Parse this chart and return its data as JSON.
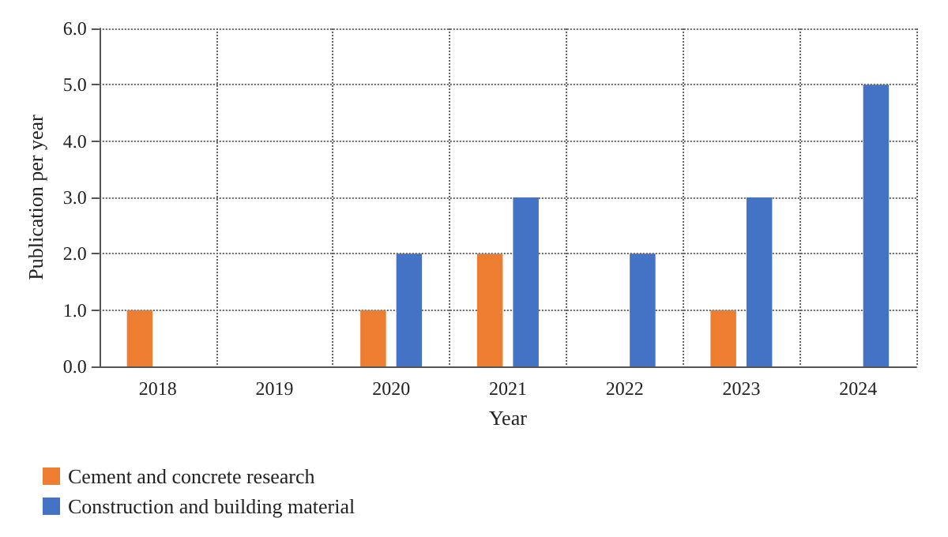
{
  "chart_data": {
    "type": "bar",
    "xlabel": "Year",
    "ylabel": "Publication per year",
    "categories": [
      "2018",
      "2019",
      "2020",
      "2021",
      "2022",
      "2023",
      "2024"
    ],
    "series": [
      {
        "name": "Cement and concrete research",
        "color": "#ed7d31",
        "values": [
          1,
          null,
          1,
          2,
          null,
          1,
          null
        ]
      },
      {
        "name": "Construction and building material",
        "color": "#4472c4",
        "values": [
          null,
          null,
          2,
          3,
          2,
          3,
          5
        ]
      }
    ],
    "ylim": [
      0,
      6
    ],
    "yticks": [
      {
        "value": 0,
        "label": "0.0"
      },
      {
        "value": 1,
        "label": "1.0"
      },
      {
        "value": 2,
        "label": "2.0"
      },
      {
        "value": 3,
        "label": "3.0"
      },
      {
        "value": 4,
        "label": "4.0"
      },
      {
        "value": 5,
        "label": "5.0"
      },
      {
        "value": 6,
        "label": "6.0"
      }
    ],
    "grid": true,
    "legend": "bottom left"
  }
}
